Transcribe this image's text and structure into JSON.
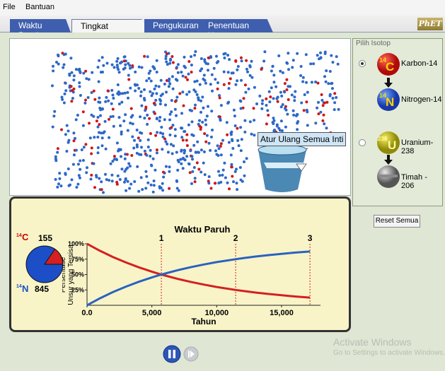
{
  "menu": {
    "file": "File",
    "help": "Bantuan"
  },
  "tabs": [
    {
      "label": "Waktu Paruh"
    },
    {
      "label": "Tingkat Peluruhan"
    },
    {
      "label": "Pengukuran"
    },
    {
      "label": "Penentuan Umur"
    }
  ],
  "logo_text": "PhET",
  "reset_nuclei_label": "Atur Ulang Semua Inti",
  "isotope_panel": {
    "title": "Pilih Isotop",
    "options": [
      {
        "parent_mass": "14",
        "parent_symbol": "C",
        "parent_name": "Karbon-14",
        "daughter_mass": "14",
        "daughter_symbol": "N",
        "daughter_name": "Nitrogen-14",
        "selected": true
      },
      {
        "parent_mass": "238",
        "parent_symbol": "U",
        "parent_name": "Uranium-238",
        "daughter_name": "Timah - 206",
        "selected": false
      }
    ]
  },
  "reset_all_label": "Reset Semua",
  "pie": {
    "parent_mass": "14",
    "parent_symbol": "C",
    "parent_count": "155",
    "daughter_mass": "14",
    "daughter_symbol": "N",
    "daughter_count": "845",
    "parent_fraction": 0.155
  },
  "chart_data": {
    "type": "line",
    "title": "Waktu Paruh",
    "xlabel": "Tahun",
    "ylabel_line1": "Persentase",
    "ylabel_line2": "Unsur yang Tersisa",
    "x_ticks": [
      {
        "value": 0,
        "label": "0.0"
      },
      {
        "value": 5000,
        "label": "5,000"
      },
      {
        "value": 10000,
        "label": "10,000"
      },
      {
        "value": 15000,
        "label": "15,000"
      }
    ],
    "y_ticks": [
      {
        "value": 25,
        "label": "25%"
      },
      {
        "value": 50,
        "label": "50%"
      },
      {
        "value": 75,
        "label": "75%"
      },
      {
        "value": 100,
        "label": "100%"
      }
    ],
    "xlim": [
      0,
      18000
    ],
    "ylim": [
      0,
      100
    ],
    "half_life": 5730,
    "half_life_markers": [
      {
        "x": 5730,
        "label": "1"
      },
      {
        "x": 11460,
        "label": "2"
      },
      {
        "x": 17190,
        "label": "3"
      }
    ],
    "series": [
      {
        "color": "#d42020",
        "x": [
          0,
          1000,
          2000,
          3000,
          4000,
          5000,
          5730,
          7000,
          8000,
          9000,
          10000,
          11460,
          12000,
          13000,
          14000,
          15000,
          16000,
          17190
        ],
        "y": [
          100,
          88.6,
          78.5,
          69.6,
          61.7,
          54.7,
          50,
          42.9,
          38.0,
          33.7,
          29.8,
          25,
          23.4,
          20.7,
          18.4,
          16.3,
          14.4,
          12.5
        ]
      },
      {
        "color": "#2a62c0",
        "x": [
          0,
          1000,
          2000,
          3000,
          4000,
          5000,
          5730,
          7000,
          8000,
          9000,
          10000,
          11460,
          12000,
          13000,
          14000,
          15000,
          16000,
          17190
        ],
        "y": [
          0,
          11.4,
          21.5,
          30.4,
          38.3,
          45.3,
          50,
          57.1,
          62.0,
          66.3,
          70.2,
          75,
          76.6,
          79.3,
          81.6,
          83.7,
          85.6,
          87.5
        ]
      }
    ]
  },
  "watermark": {
    "line1": "Activate Windows",
    "line2": "Go to Settings to activate Windows."
  }
}
